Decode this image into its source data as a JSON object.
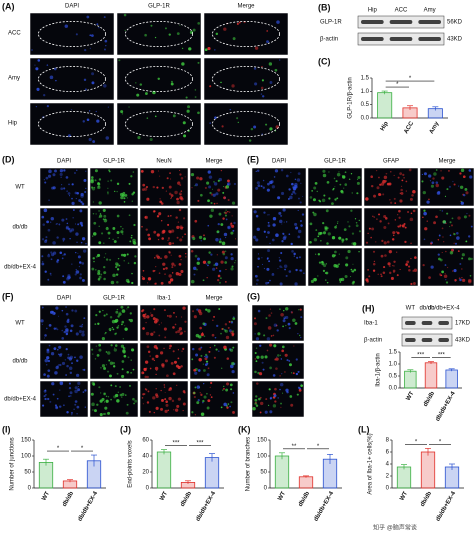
{
  "figure": {
    "A": {
      "label": "(A)",
      "columns": [
        "DAPI",
        "GLP-1R",
        "Merge"
      ],
      "rows": [
        "ACC",
        "Amy",
        "Hip"
      ]
    },
    "B": {
      "label": "(B)",
      "lanes": [
        "Hip",
        "ACC",
        "Amy"
      ],
      "bands": [
        {
          "name": "GLP-1R",
          "size": "56KD"
        },
        {
          "name": "β-actin",
          "size": "43KD"
        }
      ]
    },
    "D": {
      "label": "(D)",
      "columns": [
        "DAPI",
        "GLP-1R",
        "NeuN",
        "Merge"
      ],
      "rows": [
        "WT",
        "db/db",
        "db/db+EX-4"
      ]
    },
    "E": {
      "label": "(E)",
      "columns": [
        "DAPI",
        "GLP-1R",
        "GFAP",
        "Merge"
      ]
    },
    "F": {
      "label": "(F)",
      "columns": [
        "DAPI",
        "GLP-1R",
        "Iba-1",
        "Merge"
      ],
      "rows": [
        "WT",
        "db/db",
        "db/db+EX-4"
      ]
    },
    "G": {
      "label": "(G)"
    },
    "H": {
      "label": "(H)",
      "lanes": [
        "WT",
        "db/db",
        "db/db+EX-4"
      ],
      "bands": [
        {
          "name": "Iba-1",
          "size": "17KD"
        },
        {
          "name": "β-actin",
          "size": "43KD"
        }
      ]
    },
    "watermark": "知乎 @脑声常谈"
  },
  "chart_data": [
    {
      "type": "bar",
      "label": "(C)",
      "ylabel": "GLP-1R/β-actin",
      "categories": [
        "Hip",
        "ACC",
        "Amy"
      ],
      "values": [
        0.95,
        0.38,
        0.35
      ],
      "errors": [
        0.06,
        0.08,
        0.07
      ],
      "colors": [
        "#3cb043",
        "#e0302a",
        "#2a52d0"
      ],
      "ylim": [
        0,
        1.5
      ],
      "yticks": [
        {
          "value": 0,
          "label": "0.0"
        },
        {
          "value": 0.5,
          "label": "0.5"
        },
        {
          "value": 1,
          "label": "1.0"
        },
        {
          "value": 1.5,
          "label": "1.5"
        }
      ],
      "annotations": [
        "*",
        "*"
      ]
    },
    {
      "type": "bar",
      "ylabel": "Iba-1/β-actin",
      "categories": [
        "WT",
        "db/db",
        "db/db+EX-4"
      ],
      "values": [
        0.7,
        1.05,
        0.75
      ],
      "errors": [
        0.06,
        0.05,
        0.05
      ],
      "colors": [
        "#3cb043",
        "#e0302a",
        "#2a52d0"
      ],
      "ylim": [
        0,
        1.5
      ],
      "yticks": [
        {
          "value": 0,
          "label": "0.0"
        },
        {
          "value": 0.5,
          "label": "0.5"
        },
        {
          "value": 1,
          "label": "1.0"
        },
        {
          "value": 1.5,
          "label": "1.5"
        }
      ],
      "annotations": [
        "***",
        "***"
      ]
    },
    {
      "type": "bar",
      "label": "(I)",
      "ylabel": "Number of junctions",
      "categories": [
        "WT",
        "db/db",
        "db/db+EX-4"
      ],
      "values": [
        80,
        22,
        85
      ],
      "errors": [
        10,
        4,
        18
      ],
      "colors": [
        "#3cb043",
        "#e0302a",
        "#2a52d0"
      ],
      "ylim": [
        0,
        150
      ],
      "yticks": [
        0,
        50,
        100,
        150
      ],
      "annotations": [
        "*",
        "*"
      ]
    },
    {
      "type": "bar",
      "label": "(J)",
      "ylabel": "End-points voxels",
      "categories": [
        "WT",
        "db/db",
        "db/db+EX-4"
      ],
      "values": [
        45,
        7,
        38
      ],
      "errors": [
        3,
        2,
        5
      ],
      "colors": [
        "#3cb043",
        "#e0302a",
        "#2a52d0"
      ],
      "ylim": [
        0,
        60
      ],
      "yticks": [
        0,
        20,
        40,
        60
      ],
      "annotations": [
        "***",
        "***"
      ]
    },
    {
      "type": "bar",
      "label": "(K)",
      "ylabel": "Number of branches",
      "categories": [
        "WT",
        "db/db",
        "db/db+EX-4"
      ],
      "values": [
        100,
        35,
        90
      ],
      "errors": [
        10,
        3,
        15
      ],
      "colors": [
        "#3cb043",
        "#e0302a",
        "#2a52d0"
      ],
      "ylim": [
        0,
        150
      ],
      "yticks": [
        0,
        50,
        100,
        150
      ],
      "annotations": [
        "**",
        "*"
      ]
    },
    {
      "type": "bar",
      "label": "(L)",
      "ylabel": "Area of Iba-1+ cells(%)",
      "categories": [
        "WT",
        "db/db",
        "db/db+EX-4"
      ],
      "values": [
        3.5,
        6,
        3.5
      ],
      "errors": [
        0.4,
        0.6,
        0.5
      ],
      "colors": [
        "#3cb043",
        "#e0302a",
        "#2a52d0"
      ],
      "ylim": [
        0,
        8
      ],
      "yticks": [
        0,
        2,
        4,
        6,
        8
      ],
      "annotations": [
        "*",
        "*"
      ]
    }
  ]
}
